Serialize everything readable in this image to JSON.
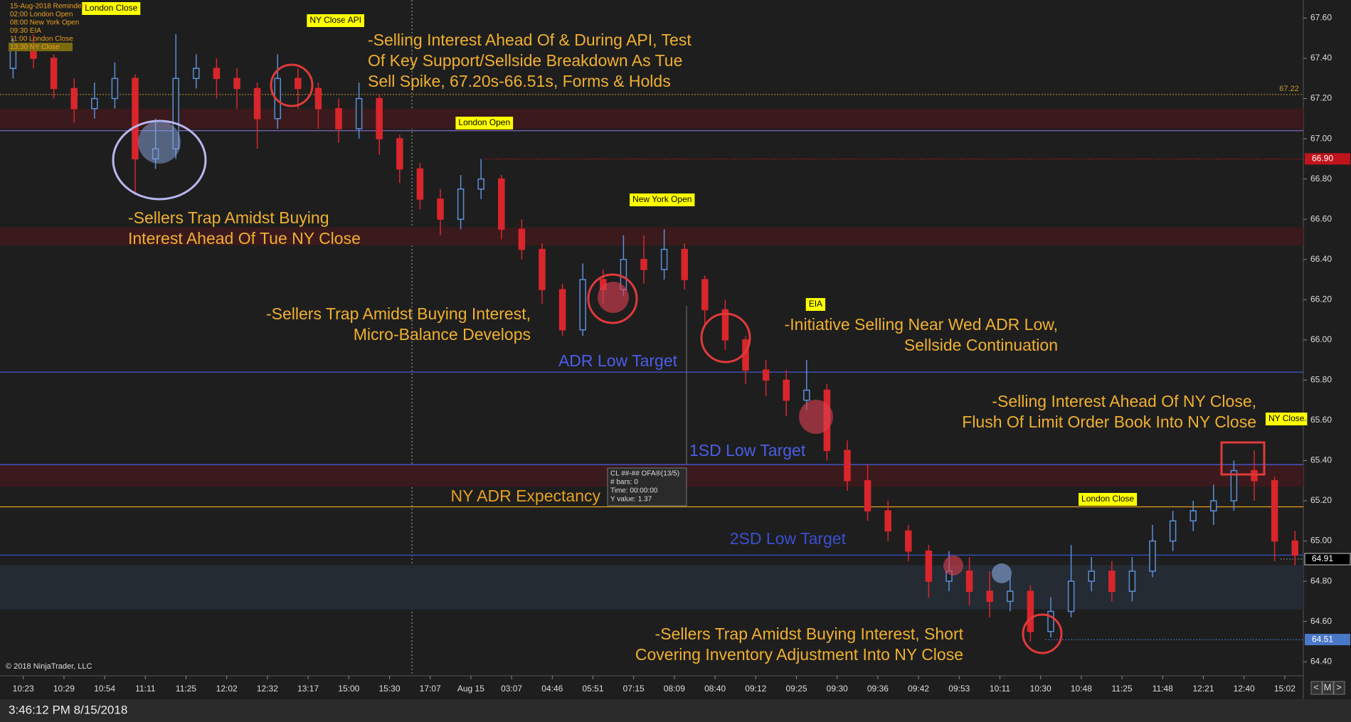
{
  "chart_data": {
    "type": "candlestick",
    "categories": [
      "10:23",
      "10:29",
      "10:54",
      "11:11",
      "11:25",
      "12:02",
      "12:32",
      "13:17",
      "15:00",
      "15:30",
      "17:07",
      "Aug 15",
      "03:07",
      "04:46",
      "05:51",
      "07:15",
      "08:09",
      "08:40",
      "09:12",
      "09:25",
      "09:30",
      "09:36",
      "09:42",
      "09:53",
      "10:11",
      "10:30",
      "10:48",
      "11:25",
      "11:48",
      "12:21",
      "12:40",
      "15:02"
    ],
    "open": [
      67.35,
      67.45,
      67.4,
      67.25,
      67.15,
      67.2,
      67.3,
      66.9,
      66.95,
      67.3,
      67.35,
      67.3,
      67.25,
      67.1,
      67.3,
      67.25,
      67.15,
      67.05,
      67.2,
      67.0,
      66.85,
      66.7,
      66.6,
      66.75,
      66.8,
      66.55,
      66.45,
      66.25,
      66.05,
      66.3,
      66.25,
      66.4,
      66.35,
      66.45,
      66.3,
      66.15,
      66.0,
      65.85,
      65.8,
      65.7,
      65.75,
      65.45,
      65.3,
      65.15,
      65.05,
      64.95,
      64.8,
      64.85,
      64.75,
      64.7,
      64.75,
      64.55,
      64.65,
      64.8,
      64.85,
      64.75,
      64.85,
      65.0,
      65.1,
      65.15,
      65.2,
      65.35,
      65.3,
      65.0
    ],
    "high": [
      67.5,
      67.52,
      67.42,
      67.3,
      67.28,
      67.38,
      67.32,
      67.1,
      67.52,
      67.42,
      67.4,
      67.35,
      67.28,
      67.42,
      67.35,
      67.28,
      67.2,
      67.28,
      67.22,
      67.02,
      66.88,
      66.75,
      66.82,
      66.9,
      66.82,
      66.6,
      66.48,
      66.28,
      66.38,
      66.35,
      66.52,
      66.52,
      66.55,
      66.48,
      66.32,
      66.2,
      66.02,
      65.9,
      65.85,
      65.9,
      65.78,
      65.5,
      65.38,
      65.2,
      65.08,
      64.98,
      64.95,
      64.92,
      64.85,
      64.82,
      64.78,
      64.72,
      64.98,
      64.92,
      64.9,
      64.92,
      65.08,
      65.15,
      65.2,
      65.28,
      65.4,
      65.45,
      65.32,
      65.05
    ],
    "low": [
      67.3,
      67.35,
      67.2,
      67.08,
      67.1,
      67.15,
      66.72,
      66.85,
      66.9,
      67.25,
      67.2,
      67.15,
      66.95,
      67.05,
      67.15,
      67.05,
      66.98,
      67.0,
      66.92,
      66.78,
      66.65,
      66.52,
      66.55,
      66.7,
      66.5,
      66.4,
      66.18,
      66.02,
      66.02,
      66.18,
      66.22,
      66.28,
      66.3,
      66.25,
      66.08,
      65.95,
      65.78,
      65.72,
      65.62,
      65.65,
      65.4,
      65.25,
      65.1,
      65.0,
      64.9,
      64.72,
      64.75,
      64.68,
      64.62,
      64.65,
      64.5,
      64.52,
      64.62,
      64.75,
      64.7,
      64.7,
      64.82,
      64.95,
      65.05,
      65.08,
      65.15,
      65.2,
      64.9,
      64.88
    ],
    "close": [
      67.45,
      67.4,
      67.25,
      67.15,
      67.2,
      67.3,
      66.9,
      66.95,
      67.3,
      67.35,
      67.3,
      67.25,
      67.1,
      67.3,
      67.25,
      67.15,
      67.05,
      67.2,
      67.0,
      66.85,
      66.7,
      66.6,
      66.75,
      66.8,
      66.55,
      66.45,
      66.25,
      66.05,
      66.3,
      66.25,
      66.4,
      66.35,
      66.45,
      66.3,
      66.15,
      66.0,
      65.85,
      65.8,
      65.7,
      65.75,
      65.45,
      65.3,
      65.15,
      65.05,
      64.95,
      64.8,
      64.85,
      64.75,
      64.7,
      64.75,
      64.55,
      64.65,
      64.8,
      64.85,
      64.75,
      64.85,
      65.0,
      65.1,
      65.15,
      65.2,
      65.35,
      65.3,
      65.0,
      64.93
    ],
    "up_color": "#5b8fd9",
    "down_color": "#d8262c",
    "ylim": [
      64.33,
      67.69
    ],
    "yticks": [
      {
        "value": 64.4,
        "label": "64.40"
      },
      {
        "value": 64.6,
        "label": "64.60"
      },
      {
        "value": 64.8,
        "label": "64.80"
      },
      {
        "value": 65,
        "label": "65.00"
      },
      {
        "value": 65.2,
        "label": "65.20"
      },
      {
        "value": 65.4,
        "label": "65.40"
      },
      {
        "value": 65.6,
        "label": "65.60"
      },
      {
        "value": 65.8,
        "label": "65.80"
      },
      {
        "value": 66,
        "label": "66.00"
      },
      {
        "value": 66.2,
        "label": "66.20"
      },
      {
        "value": 66.4,
        "label": "66.40"
      },
      {
        "value": 66.6,
        "label": "66.60"
      },
      {
        "value": 66.8,
        "label": "66.80"
      },
      {
        "value": 67,
        "label": "67.00"
      },
      {
        "value": 67.2,
        "label": "67.20"
      },
      {
        "value": 67.4,
        "label": "67.40"
      },
      {
        "value": 67.6,
        "label": "67.60"
      }
    ],
    "zones": [
      {
        "from": 67.05,
        "to": 67.15,
        "color": "#3a1a1c"
      },
      {
        "from": 66.47,
        "to": 66.56,
        "color": "#3a1a1c"
      },
      {
        "from": 65.27,
        "to": 65.38,
        "color": "#3a1a1c"
      },
      {
        "from": 64.66,
        "to": 64.88,
        "color": "#252b33"
      }
    ],
    "levels": [
      {
        "name": "ADR Low Target",
        "value": 65.84,
        "color": "#4a5ee8"
      },
      {
        "name": "1SD Low Target",
        "value": 65.38,
        "color": "#4a5ee8"
      },
      {
        "name": "NY ADR Expectancy",
        "value": 65.17,
        "color": "#e8a020"
      },
      {
        "name": "2SD Low Target",
        "value": 64.93,
        "color": "#3a4fd0"
      }
    ],
    "price_line": {
      "value": 67.04,
      "color": "#9a7ae0"
    },
    "price_tags": [
      {
        "value": 67.22,
        "label": "67.22",
        "color": "#c8962a"
      },
      {
        "value": 66.9,
        "label": "66.90",
        "color": "#c0141c"
      },
      {
        "value": 64.91,
        "label": "64.91",
        "color": "#000000"
      },
      {
        "value": 64.51,
        "label": "64.51",
        "color": "#4a78c8"
      }
    ],
    "events": [
      {
        "text": "London Close",
        "x": 2.16
      },
      {
        "text": "NY Close",
        "x": 7.48
      },
      {
        "text": "API",
        "x": 8.14
      },
      {
        "text": "London Open",
        "x": 11.33
      },
      {
        "text": "New York Open",
        "x": 15.7
      },
      {
        "text": "EIA",
        "x": 19.47
      },
      {
        "text": "London Close",
        "x": 26.65
      },
      {
        "text": "NY Close",
        "x": 31.04
      }
    ],
    "annotations": [
      [
        "-Selling Interest Ahead Of & During API, Test",
        "Of Key Support/Sellside Breakdown As Tue",
        "Sell Spike, 67.20s-66.51s, Forms & Holds"
      ],
      [
        "-Sellers Trap Amidst Buying",
        "Interest Ahead Of Tue NY Close"
      ],
      [
        "-Sellers Trap Amidst Buying Interest,",
        "Micro-Balance Develops"
      ],
      [
        "-Initiative Selling Near Wed ADR Low,",
        "Sellside Continuation"
      ],
      [
        "-Selling Interest Ahead Of NY Close,",
        "Flush Of Limit Order Book Into NY Close"
      ],
      [
        "-Sellers Trap Amidst Buying Interest, Short",
        "Covering Inventory Adjustment Into NY Close"
      ]
    ],
    "reminders": [
      "15-Aug-2018 Reminders",
      "02:00 London Open",
      "08:00 New York Open",
      "09:30 EIA",
      "11:00 London Close",
      "13:30 NY Close"
    ],
    "data_box": [
      "CL ##-## OFA®(13/5)",
      "# bars:   0",
      "Time:     00:00:00",
      "Y value:   1.37"
    ],
    "copyright": "© 2018 NinjaTrader, LLC"
  },
  "status_bar": {
    "time": "3:46:12 PM 8/15/2018",
    "buttons": [
      "<",
      "M",
      ">"
    ]
  }
}
